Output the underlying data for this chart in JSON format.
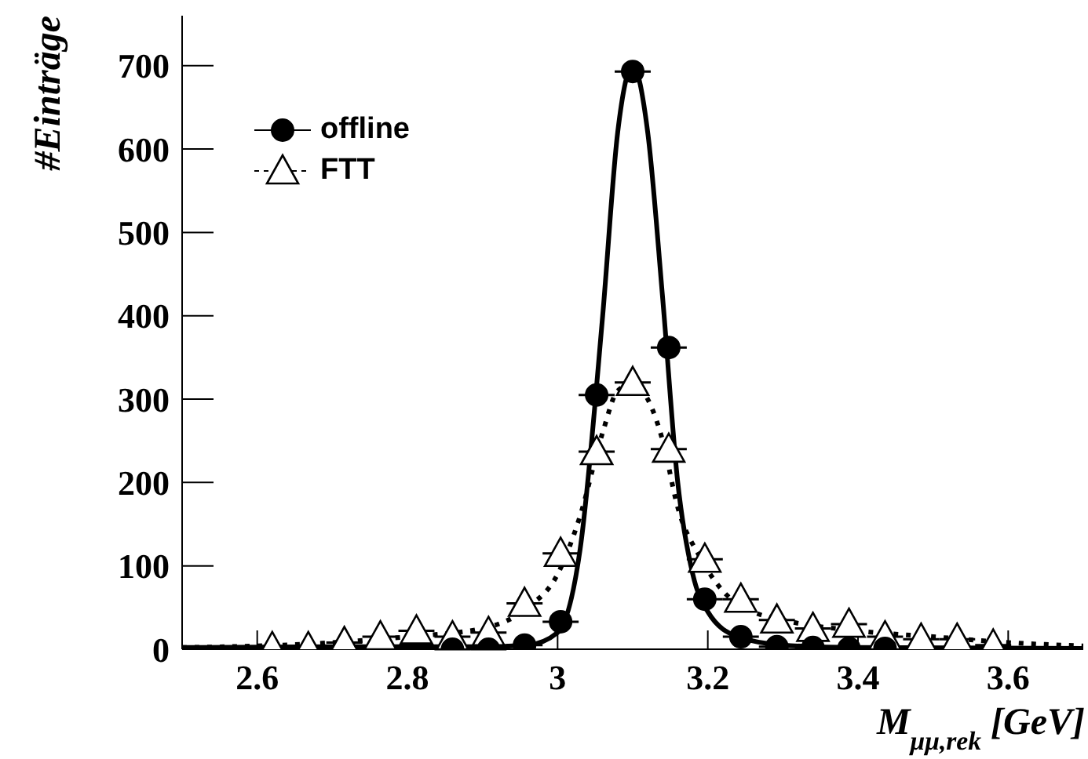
{
  "chart_data": {
    "type": "scatter",
    "ylabel": "#Einträge",
    "xlabel": "M$_{μμ,rek}$ [GeV]",
    "xlim": [
      2.5,
      3.7
    ],
    "xticks": [
      2.6,
      2.8,
      3,
      3.2,
      3.4,
      3.6
    ],
    "ylim": [
      0,
      760
    ],
    "yticks": [
      0,
      100,
      200,
      300,
      400,
      500,
      600,
      700
    ],
    "grid": false,
    "legend": "top left",
    "series": [
      {
        "name": "offline",
        "marker": "circle",
        "color": "#000000",
        "x": [
          2.86,
          2.908,
          2.956,
          3.004,
          3.052,
          3.1,
          3.148,
          3.196,
          3.244,
          3.292,
          3.34,
          3.388,
          3.436
        ],
        "values": [
          0,
          0,
          5,
          33,
          305,
          693,
          362,
          60,
          15,
          3,
          2,
          1,
          1
        ],
        "xerrors": [
          0.024,
          0.024,
          0.024,
          0.024,
          0.024,
          0.024,
          0.024,
          0.024,
          0.024,
          0.024,
          0.024,
          0.024,
          0.024
        ]
      },
      {
        "name": "FTT",
        "marker": "triangle",
        "color": "#000000",
        "x": [
          2.62,
          2.668,
          2.716,
          2.764,
          2.812,
          2.86,
          2.908,
          2.956,
          3.004,
          3.052,
          3.1,
          3.148,
          3.196,
          3.244,
          3.292,
          3.34,
          3.388,
          3.436,
          3.484,
          3.532,
          3.58
        ],
        "values": [
          2,
          2,
          8,
          15,
          22,
          15,
          20,
          55,
          115,
          237,
          320,
          240,
          108,
          60,
          35,
          25,
          30,
          15,
          12,
          12,
          5
        ],
        "xerrors": [
          0.024,
          0.024,
          0.024,
          0.024,
          0.024,
          0.024,
          0.024,
          0.024,
          0.024,
          0.024,
          0.024,
          0.024,
          0.024,
          0.024,
          0.024,
          0.024,
          0.024,
          0.024,
          0.024,
          0.024,
          0.024
        ]
      },
      {
        "type": "line",
        "marker": "none",
        "line_style": "solid",
        "color": "#000000",
        "x": [
          2.5,
          2.7,
          2.9,
          2.96,
          3.0,
          3.03,
          3.06,
          3.08,
          3.1,
          3.12,
          3.14,
          3.16,
          3.18,
          3.2,
          3.24,
          3.3,
          3.4,
          3.7
        ],
        "values": [
          2,
          3,
          3,
          5,
          20,
          120,
          400,
          620,
          700,
          620,
          420,
          200,
          90,
          45,
          15,
          5,
          2,
          1
        ]
      },
      {
        "type": "line",
        "marker": "none",
        "line_style": "dotted",
        "color": "#000000",
        "x": [
          2.5,
          2.7,
          2.8,
          2.9,
          2.96,
          3.0,
          3.03,
          3.06,
          3.08,
          3.1,
          3.12,
          3.14,
          3.16,
          3.19,
          3.22,
          3.26,
          3.3,
          3.4,
          3.5,
          3.6,
          3.7
        ],
        "values": [
          2,
          8,
          15,
          25,
          50,
          90,
          160,
          260,
          310,
          318,
          300,
          250,
          170,
          110,
          70,
          45,
          35,
          22,
          15,
          8,
          4
        ]
      }
    ]
  }
}
